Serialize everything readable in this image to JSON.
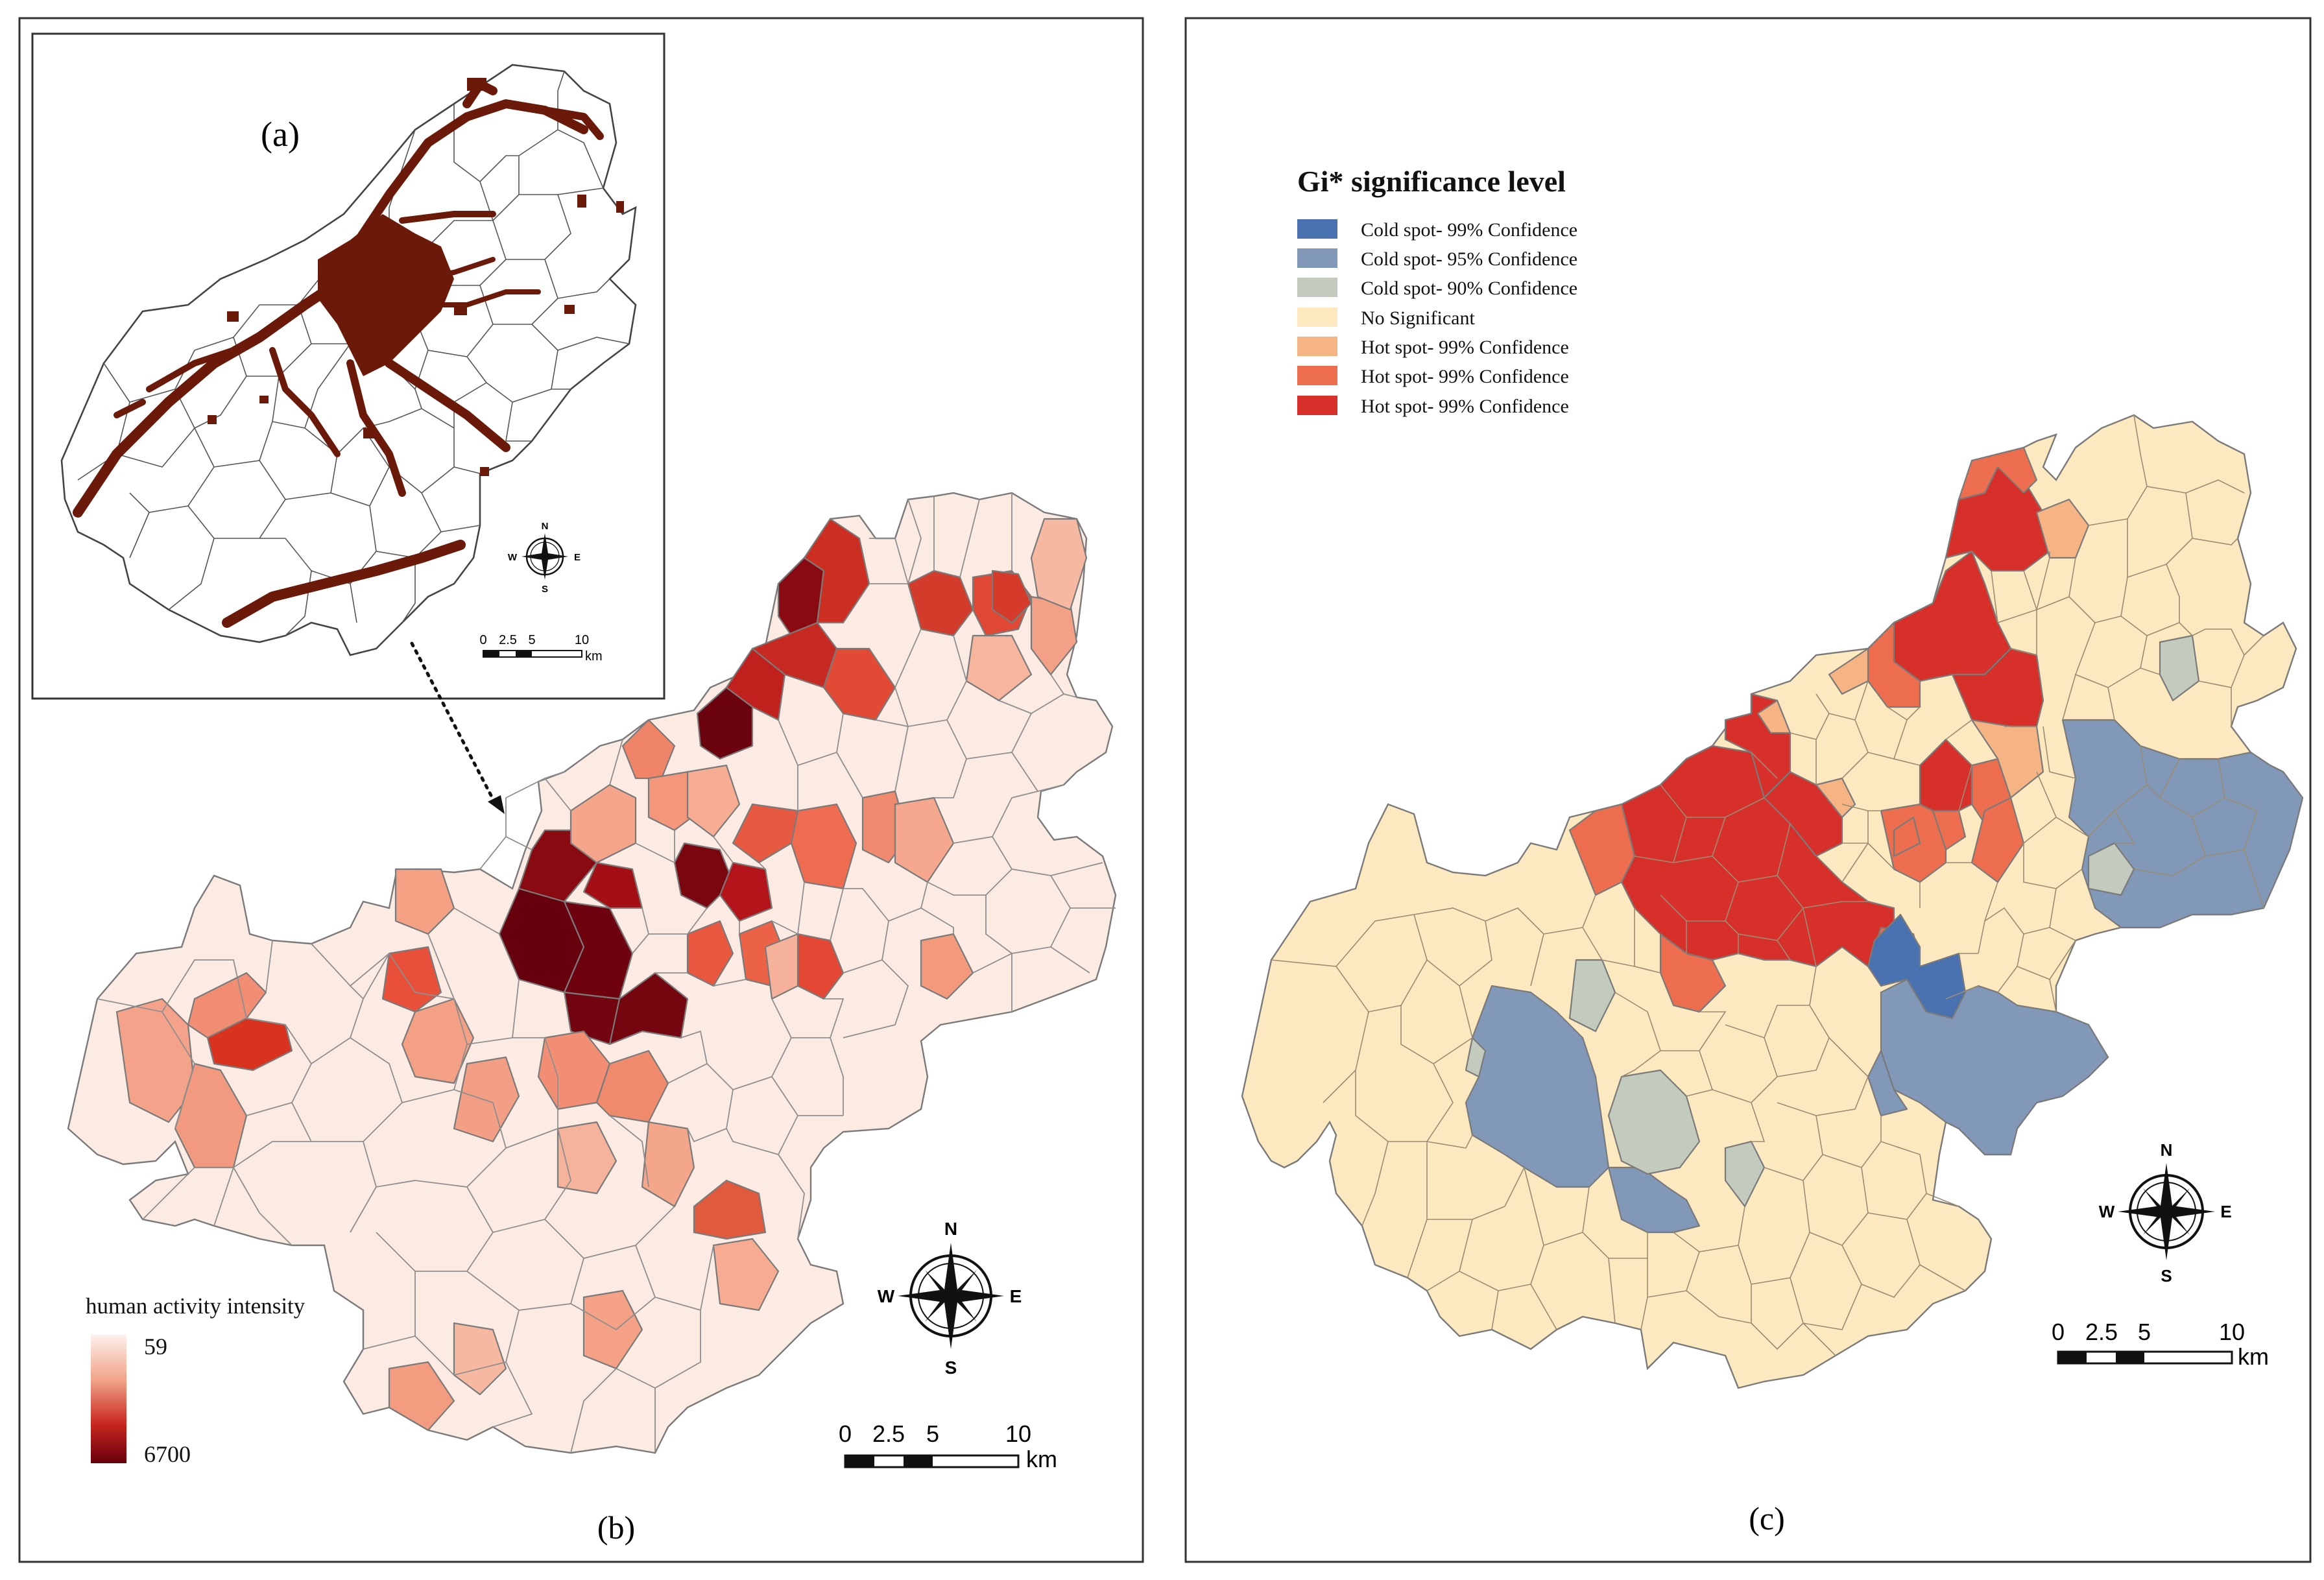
{
  "panel_b": {
    "label": "(b)",
    "legend": {
      "title": "human activity intensity",
      "min_label": "59",
      "max_label": "6700",
      "color_low": "#fdf1ec",
      "color_high": "#67000d"
    },
    "scalebar": {
      "ticks": [
        "0",
        "2.5",
        "5",
        "10"
      ],
      "unit": "km"
    },
    "compass": {
      "n": "N",
      "s": "S",
      "e": "E",
      "w": "W"
    }
  },
  "inset_a": {
    "label": "(a)",
    "settlement_color": "#6b1a0a",
    "scalebar": {
      "ticks": [
        "0",
        "2.5",
        "5",
        "10"
      ],
      "unit": "km"
    },
    "compass": {
      "n": "N",
      "s": "S",
      "e": "E",
      "w": "W"
    }
  },
  "panel_c": {
    "label": "(c)",
    "legend": {
      "title": "Gi* significance level",
      "items": [
        {
          "label": "Cold spot- 99% Confidence",
          "color": "#4a72b0"
        },
        {
          "label": "Cold spot- 95% Confidence",
          "color": "#8298b8"
        },
        {
          "label": "Cold spot- 90% Confidence",
          "color": "#c2cbbd"
        },
        {
          "label": "No Significant",
          "color": "#fde9bf"
        },
        {
          "label": "Hot spot- 99% Confidence",
          "color": "#f6b484"
        },
        {
          "label": "Hot spot- 99% Confidence",
          "color": "#ec6e4e"
        },
        {
          "label": "Hot spot- 99% Confidence",
          "color": "#d7302a"
        }
      ]
    },
    "scalebar": {
      "ticks": [
        "0",
        "2.5",
        "5",
        "10"
      ],
      "unit": "km"
    },
    "compass": {
      "n": "N",
      "s": "S",
      "e": "E",
      "w": "W"
    }
  }
}
